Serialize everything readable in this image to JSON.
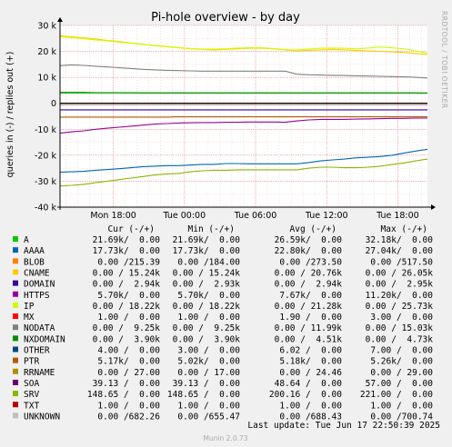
{
  "chart_data": {
    "type": "line",
    "title": "Pi-hole overview - by day",
    "ylabel": "queries in (-) / replies out (+)",
    "side_label": "RRDTOOL / TOBI OETIKER",
    "ylim": [
      -40000,
      30000
    ],
    "yticks": [
      {
        "v": 30000,
        "label": "30 k"
      },
      {
        "v": 20000,
        "label": "20 k"
      },
      {
        "v": 10000,
        "label": "10 k"
      },
      {
        "v": 0,
        "label": "0"
      },
      {
        "v": -10000,
        "label": "-10 k"
      },
      {
        "v": -20000,
        "label": "-20 k"
      },
      {
        "v": -30000,
        "label": "-30 k"
      },
      {
        "v": -40000,
        "label": "-40 k"
      }
    ],
    "xlim": [
      0,
      31
    ],
    "xticks": [
      {
        "v": 4.5,
        "label": "Mon 18:00"
      },
      {
        "v": 10.5,
        "label": "Tue 00:00"
      },
      {
        "v": 16.5,
        "label": "Tue 06:00"
      },
      {
        "v": 22.5,
        "label": "Tue 12:00"
      },
      {
        "v": 28.5,
        "label": "Tue 18:00"
      }
    ],
    "x": [
      0,
      1,
      2,
      3,
      4,
      5,
      6,
      7,
      8,
      9,
      10,
      11,
      12,
      13,
      14,
      15,
      16,
      17,
      18,
      19,
      20,
      21,
      22,
      23,
      24,
      25,
      26,
      27,
      28,
      29,
      30,
      31
    ],
    "series": [
      {
        "name": "A",
        "color": "#00cc00",
        "values": [
          4000,
          4000,
          4000,
          4000,
          4000,
          4000,
          4000,
          4000,
          4000,
          4000,
          4000,
          4000,
          4000,
          4000,
          4000,
          4000,
          4000,
          4000,
          4000,
          4000,
          4000,
          4000,
          4000,
          4000,
          4000,
          4000,
          4000,
          4000,
          4000,
          4000,
          4000,
          4000
        ]
      },
      {
        "name": "AAAA",
        "color": "#0066b3",
        "values": [
          -26500,
          -26400,
          -26200,
          -25800,
          -25500,
          -25200,
          -24800,
          -24400,
          -24200,
          -24000,
          -24000,
          -23800,
          -23500,
          -23500,
          -23200,
          -23200,
          -23300,
          -23300,
          -23300,
          -23300,
          -23300,
          -22800,
          -22200,
          -21800,
          -21500,
          -21000,
          -20800,
          -20500,
          -20000,
          -19200,
          -18400,
          -17700
        ]
      },
      {
        "name": "BLOB",
        "color": "#ff8000",
        "values": [
          -100,
          -100,
          -100,
          -100,
          -100,
          -100,
          -100,
          -100,
          -100,
          -100,
          -100,
          -100,
          -100,
          -100,
          -100,
          -100,
          -100,
          -100,
          -100,
          -100,
          -100,
          -100,
          -100,
          -100,
          -100,
          -100,
          -100,
          -100,
          -100,
          -100,
          -100,
          -100
        ]
      },
      {
        "name": "CNAME",
        "color": "#ffcc00",
        "values": [
          26000,
          25600,
          25200,
          24800,
          24200,
          23800,
          23200,
          22800,
          22200,
          21800,
          21400,
          21000,
          20800,
          20600,
          20800,
          21000,
          21200,
          21200,
          21000,
          20600,
          20200,
          20400,
          20600,
          20800,
          20600,
          20400,
          20200,
          20000,
          19800,
          19600,
          19200,
          18800
        ]
      },
      {
        "name": "DOMAIN",
        "color": "#330099",
        "values": [
          -2500,
          -2500,
          -2500,
          -2500,
          -2500,
          -2500,
          -2500,
          -2500,
          -2500,
          -2500,
          -2500,
          -2500,
          -2500,
          -2500,
          -2500,
          -2500,
          -2500,
          -2500,
          -2500,
          -2500,
          -2500,
          -2500,
          -2500,
          -2500,
          -2500,
          -2500,
          -2500,
          -2500,
          -2500,
          -2500,
          -2500,
          -2500
        ]
      },
      {
        "name": "HTTPS",
        "color": "#990099",
        "values": [
          -11500,
          -11000,
          -10600,
          -10000,
          -9600,
          -9200,
          -8800,
          -8400,
          -8000,
          -7800,
          -7600,
          -7500,
          -7400,
          -7400,
          -7300,
          -7300,
          -7200,
          -7200,
          -7200,
          -7300,
          -6800,
          -6400,
          -6200,
          -6200,
          -6200,
          -6100,
          -6000,
          -5900,
          -5800,
          -5800,
          -5700,
          -5700
        ]
      },
      {
        "name": "IP",
        "color": "#ccff00",
        "values": [
          25700,
          25300,
          24900,
          24400,
          24000,
          23600,
          23100,
          22700,
          22300,
          21900,
          21500,
          21100,
          20900,
          20900,
          21000,
          21300,
          21400,
          21400,
          21100,
          20700,
          20500,
          20900,
          21200,
          21300,
          21200,
          21000,
          21300,
          21700,
          21400,
          21000,
          20200,
          19300
        ]
      },
      {
        "name": "MX",
        "color": "#ff0000",
        "values": [
          1,
          1,
          1,
          1,
          1,
          1,
          1,
          1,
          1,
          1,
          1,
          1,
          1,
          1,
          1,
          1,
          1,
          1,
          1,
          1,
          1,
          1,
          1,
          1,
          1,
          1,
          1,
          1,
          1,
          1,
          1,
          1
        ]
      },
      {
        "name": "NODATA",
        "color": "#808080",
        "values": [
          14500,
          14800,
          14600,
          14300,
          14000,
          13700,
          13400,
          13100,
          12900,
          12700,
          12600,
          12500,
          12400,
          12400,
          12400,
          12400,
          12400,
          12400,
          12400,
          12400,
          11200,
          11000,
          10900,
          10800,
          10700,
          10600,
          10500,
          10400,
          10300,
          10200,
          10000,
          9700
        ]
      },
      {
        "name": "NXDOMAIN",
        "color": "#008f00",
        "values": [
          4200,
          4200,
          4200,
          4100,
          4100,
          4100,
          4100,
          4000,
          4000,
          4000,
          4000,
          4000,
          4000,
          4000,
          4000,
          4000,
          4000,
          4000,
          4000,
          4000,
          4000,
          4000,
          4000,
          4000,
          4000,
          4000,
          4000,
          4000,
          4000,
          4000,
          4000,
          3900
        ]
      },
      {
        "name": "OTHER",
        "color": "#00487d",
        "values": [
          4,
          4,
          4,
          4,
          4,
          4,
          4,
          4,
          4,
          4,
          4,
          4,
          4,
          4,
          4,
          4,
          4,
          4,
          4,
          4,
          4,
          4,
          4,
          4,
          4,
          4,
          4,
          4,
          4,
          4,
          4,
          4
        ]
      },
      {
        "name": "PTR",
        "color": "#b35a00",
        "values": [
          -5300,
          -5300,
          -5300,
          -5300,
          -5300,
          -5300,
          -5300,
          -5300,
          -5300,
          -5300,
          -5200,
          -5200,
          -5200,
          -5200,
          -5200,
          -5200,
          -5200,
          -5200,
          -5200,
          -5200,
          -5200,
          -5200,
          -5200,
          -5200,
          -5200,
          -5200,
          -5200,
          -5200,
          -5200,
          -5200,
          -5200,
          -5200
        ]
      },
      {
        "name": "RRNAME",
        "color": "#b38f00",
        "values": [
          0,
          0,
          0,
          0,
          0,
          0,
          0,
          0,
          0,
          0,
          0,
          0,
          0,
          0,
          0,
          0,
          0,
          0,
          0,
          0,
          0,
          0,
          0,
          0,
          0,
          0,
          0,
          0,
          0,
          0,
          0,
          0
        ]
      },
      {
        "name": "SOA",
        "color": "#6b006b",
        "values": [
          40,
          40,
          40,
          40,
          40,
          40,
          40,
          40,
          40,
          40,
          40,
          40,
          40,
          40,
          40,
          40,
          40,
          40,
          40,
          40,
          40,
          40,
          40,
          40,
          40,
          40,
          40,
          40,
          40,
          40,
          40,
          40
        ]
      },
      {
        "name": "SRV",
        "color": "#8fb300",
        "values": [
          -31800,
          -31600,
          -31200,
          -30600,
          -30000,
          -29400,
          -28800,
          -28200,
          -27600,
          -27200,
          -27000,
          -26400,
          -26000,
          -25800,
          -25800,
          -25600,
          -25600,
          -25600,
          -25600,
          -25600,
          -25600,
          -25000,
          -24600,
          -24600,
          -24800,
          -24800,
          -24600,
          -24200,
          -23600,
          -23000,
          -22200,
          -21500
        ]
      },
      {
        "name": "TXT",
        "color": "#b30000",
        "values": [
          1,
          1,
          1,
          1,
          1,
          1,
          1,
          1,
          1,
          1,
          1,
          1,
          1,
          1,
          1,
          1,
          1,
          1,
          1,
          1,
          1,
          1,
          1,
          1,
          1,
          1,
          1,
          1,
          1,
          1,
          1,
          1
        ]
      },
      {
        "name": "UNKNOWN",
        "color": "#bebebe",
        "values": [
          -680,
          -680,
          -680,
          -680,
          -680,
          -680,
          -680,
          -680,
          -680,
          -680,
          -680,
          -680,
          -680,
          -680,
          -680,
          -680,
          -680,
          -680,
          -680,
          -680,
          -680,
          -680,
          -680,
          -680,
          -680,
          -680,
          -680,
          -680,
          -680,
          -680,
          -680,
          -680
        ]
      }
    ]
  },
  "legend": {
    "headers": {
      "cur": "Cur (-/+)",
      "min": "Min (-/+)",
      "avg": "Avg (-/+)",
      "max": "Max (-/+)"
    },
    "rows": [
      {
        "name": "A",
        "color": "#00cc00",
        "cur": "21.69k/  0.00",
        "min": "21.69k/  0.00",
        "avg": "26.59k/  0.00",
        "max": "32.18k/  0.00"
      },
      {
        "name": "AAAA",
        "color": "#0066b3",
        "cur": "17.73k/  0.00",
        "min": "17.73k/  0.00",
        "avg": "22.80k/  0.00",
        "max": "27.04k/  0.00"
      },
      {
        "name": "BLOB",
        "color": "#ff8000",
        "cur": "0.00 /215.39",
        "min": "0.00 /184.00",
        "avg": "0.00 /273.50",
        "max": "0.00 /517.50"
      },
      {
        "name": "CNAME",
        "color": "#ffcc00",
        "cur": "0.00 / 15.24k",
        "min": "0.00 / 15.24k",
        "avg": "0.00 / 20.76k",
        "max": "0.00 / 26.05k"
      },
      {
        "name": "DOMAIN",
        "color": "#330099",
        "cur": "0.00 /  2.94k",
        "min": "0.00 /  2.93k",
        "avg": "0.00 /  2.94k",
        "max": "0.00 /  2.95k"
      },
      {
        "name": "HTTPS",
        "color": "#990099",
        "cur": "5.70k/  0.00",
        "min": "5.70k/  0.00",
        "avg": "7.67k/  0.00",
        "max": "11.20k/  0.00"
      },
      {
        "name": "IP",
        "color": "#ccff00",
        "cur": "0.00 / 18.22k",
        "min": "0.00 / 18.22k",
        "avg": "0.00 / 21.28k",
        "max": "0.00 / 25.73k"
      },
      {
        "name": "MX",
        "color": "#ff0000",
        "cur": "1.00 /  0.00",
        "min": "1.00 /  0.00",
        "avg": "1.90 /  0.00",
        "max": "3.00 /  0.00"
      },
      {
        "name": "NODATA",
        "color": "#808080",
        "cur": "0.00 /  9.25k",
        "min": "0.00 /  9.25k",
        "avg": "0.00 / 11.99k",
        "max": "0.00 / 15.03k"
      },
      {
        "name": "NXDOMAIN",
        "color": "#008f00",
        "cur": "0.00 /  3.90k",
        "min": "0.00 /  3.90k",
        "avg": "0.00 /  4.51k",
        "max": "0.00 /  4.73k"
      },
      {
        "name": "OTHER",
        "color": "#00487d",
        "cur": "4.00 /  0.00",
        "min": "3.00 /  0.00",
        "avg": "6.02 /  0.00",
        "max": "7.00 /  0.00"
      },
      {
        "name": "PTR",
        "color": "#b35a00",
        "cur": "5.17k/  0.00",
        "min": "5.02k/  0.00",
        "avg": "5.18k/  0.00",
        "max": "5.26k/  0.00"
      },
      {
        "name": "RRNAME",
        "color": "#b38f00",
        "cur": "0.00 / 27.00",
        "min": "0.00 / 17.00",
        "avg": "0.00 / 24.46",
        "max": "0.00 / 29.00"
      },
      {
        "name": "SOA",
        "color": "#6b006b",
        "cur": "39.13 /  0.00",
        "min": "39.13 /  0.00",
        "avg": "48.64 /  0.00",
        "max": "57.00 /  0.00"
      },
      {
        "name": "SRV",
        "color": "#8fb300",
        "cur": "148.65 /  0.00",
        "min": "148.65 /  0.00",
        "avg": "200.16 /  0.00",
        "max": "221.00 /  0.00"
      },
      {
        "name": "TXT",
        "color": "#b30000",
        "cur": "1.00 /  0.00",
        "min": "1.00 /  0.00",
        "avg": "1.00 /  0.00",
        "max": "1.00 /  0.00"
      },
      {
        "name": "UNKNOWN",
        "color": "#bebebe",
        "cur": "0.00 /682.26",
        "min": "0.00 /655.47",
        "avg": "0.00 /688.43",
        "max": "0.00 /700.74"
      }
    ]
  },
  "last_update": "Last update: Tue Jun 17 22:50:39 2025",
  "footer": "Munin 2.0.73"
}
